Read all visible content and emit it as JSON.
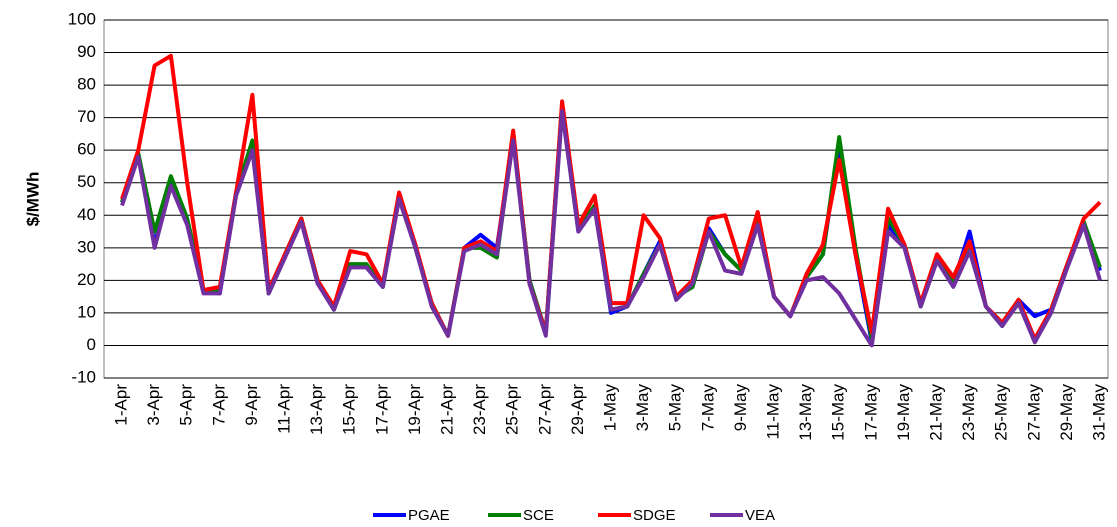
{
  "chart_data": {
    "type": "line",
    "y_label": "$/MWh",
    "categories": [
      "1-Apr",
      null,
      "3-Apr",
      null,
      "5-Apr",
      null,
      "7-Apr",
      null,
      "9-Apr",
      null,
      "11-Apr",
      null,
      "13-Apr",
      null,
      "15-Apr",
      null,
      "17-Apr",
      null,
      "19-Apr",
      null,
      "21-Apr",
      null,
      "23-Apr",
      null,
      "25-Apr",
      null,
      "27-Apr",
      null,
      "29-Apr",
      null,
      "1-May",
      null,
      "3-May",
      null,
      "5-May",
      null,
      "7-May",
      null,
      "9-May",
      null,
      "11-May",
      null,
      "13-May",
      null,
      "15-May",
      null,
      "17-May",
      null,
      "19-May",
      null,
      "21-May",
      null,
      "23-May",
      null,
      "25-May",
      null,
      "27-May",
      null,
      "29-May",
      null,
      "31-May"
    ],
    "ylim": [
      -10,
      100
    ],
    "yticks": [
      -10,
      0,
      10,
      20,
      30,
      40,
      50,
      60,
      70,
      80,
      90,
      100
    ],
    "grid": true,
    "series": [
      {
        "name": "PGAE",
        "color": "#0000ff",
        "values": [
          44,
          59,
          31,
          50,
          38,
          17,
          16,
          47,
          61,
          16,
          28,
          39,
          20,
          11,
          25,
          24,
          18,
          46,
          30,
          13,
          3,
          30,
          34,
          30,
          64,
          20,
          4,
          73,
          35,
          43,
          10,
          12,
          22,
          32,
          15,
          18,
          36,
          28,
          23,
          38,
          15,
          9,
          21,
          28,
          62,
          28,
          1,
          37,
          31,
          12,
          27,
          19,
          35,
          12,
          6,
          14,
          9,
          11,
          25,
          38,
          23
        ]
      },
      {
        "name": "SCE",
        "color": "#008000",
        "values": [
          44,
          59,
          35,
          52,
          39,
          17,
          17,
          47,
          63,
          16,
          28,
          39,
          20,
          11,
          25,
          25,
          18,
          46,
          30,
          13,
          3,
          30,
          30,
          27,
          65,
          20,
          4,
          74,
          36,
          43,
          11,
          12,
          22,
          31,
          15,
          18,
          35,
          28,
          23,
          39,
          15,
          9,
          21,
          28,
          64,
          30,
          2,
          39,
          31,
          12,
          27,
          19,
          30,
          12,
          6,
          14,
          1,
          11,
          25,
          38,
          24
        ]
      },
      {
        "name": "SDGE",
        "color": "#ff0000",
        "values": [
          45,
          60,
          86,
          89,
          50,
          17,
          18,
          47,
          77,
          17,
          28,
          39,
          20,
          12,
          29,
          28,
          19,
          47,
          31,
          13,
          3,
          30,
          32,
          29,
          66,
          19,
          4,
          75,
          37,
          46,
          13,
          13,
          40,
          33,
          15,
          20,
          39,
          40,
          24,
          41,
          15,
          9,
          22,
          31,
          57,
          28,
          4,
          42,
          31,
          13,
          28,
          21,
          32,
          12,
          7,
          14,
          2,
          11,
          25,
          39,
          44
        ]
      },
      {
        "name": "VEA",
        "color": "#7030a0",
        "values": [
          43,
          58,
          30,
          49,
          37,
          16,
          16,
          46,
          60,
          16,
          27,
          38,
          19,
          11,
          24,
          24,
          18,
          45,
          30,
          12,
          3,
          29,
          31,
          28,
          63,
          19,
          3,
          72,
          35,
          42,
          11,
          12,
          21,
          31,
          14,
          19,
          35,
          23,
          22,
          37,
          15,
          9,
          20,
          21,
          16,
          8,
          0,
          35,
          30,
          12,
          26,
          18,
          29,
          12,
          6,
          13,
          1,
          10,
          24,
          37,
          20
        ]
      }
    ]
  }
}
